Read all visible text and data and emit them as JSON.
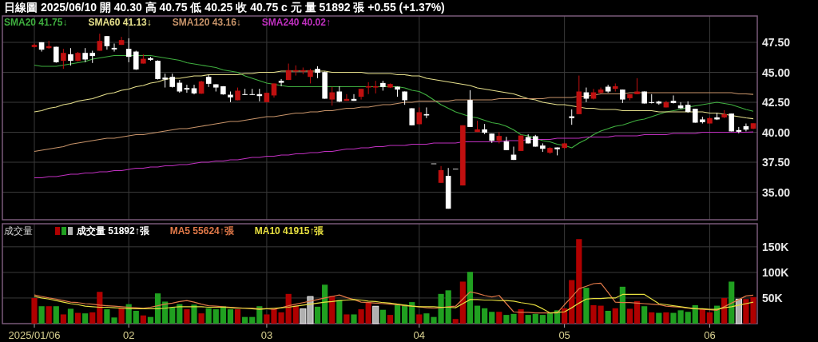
{
  "chart_data": [
    {
      "type": "candlestick",
      "title": "日線圖 2025/06/10 開 40.30 高 40.75 低 40.25 收 40.75 c 元 量 51892 張 +0.55 (+1.37%)",
      "legend": "top left",
      "grid": true,
      "tick_labels": "y",
      "categories": [
        "2025/01/06",
        null,
        null,
        null,
        null,
        null,
        null,
        null,
        null,
        null,
        null,
        null,
        null,
        "02",
        null,
        null,
        null,
        null,
        null,
        null,
        null,
        null,
        null,
        null,
        null,
        null,
        null,
        null,
        null,
        null,
        null,
        null,
        "03",
        null,
        null,
        null,
        null,
        null,
        null,
        null,
        null,
        null,
        null,
        null,
        null,
        null,
        null,
        null,
        null,
        null,
        null,
        null,
        null,
        "04",
        null,
        null,
        null,
        null,
        null,
        null,
        null,
        null,
        null,
        null,
        null,
        null,
        null,
        null,
        null,
        null,
        null,
        null,
        null,
        "05",
        null,
        null,
        null,
        null,
        null,
        null,
        null,
        null,
        null,
        null,
        null,
        null,
        null,
        null,
        null,
        null,
        null,
        null,
        null,
        "06",
        null,
        null,
        null,
        null,
        null,
        null
      ],
      "ylim": [
        32.7,
        49.7
      ],
      "yticks": [
        {
          "value": 35,
          "label": "35.00"
        },
        {
          "value": 37.5,
          "label": "37.50"
        },
        {
          "value": 40,
          "label": "40.00"
        },
        {
          "value": 42.5,
          "label": "42.50"
        },
        {
          "value": 45,
          "label": "45.00"
        },
        {
          "value": 47.5,
          "label": "47.50"
        }
      ],
      "ohlc": [
        [
          47.11,
          47.4,
          47.07,
          47.29
        ],
        [
          47.51,
          47.51,
          46.73,
          46.89
        ],
        [
          47.02,
          47.62,
          46.96,
          47.18
        ],
        [
          47.13,
          47.13,
          45.8,
          45.84
        ],
        [
          45.96,
          46.96,
          45.29,
          46.62
        ],
        [
          46.51,
          47.02,
          45.56,
          45.96
        ],
        [
          45.96,
          46.7,
          45.9,
          46.62
        ],
        [
          46.62,
          47.02,
          45.84,
          46.07
        ],
        [
          46.62,
          46.8,
          45.78,
          46.36
        ],
        [
          46.8,
          48.22,
          46.8,
          47.62
        ],
        [
          48.02,
          48.02,
          46.89,
          47.18
        ],
        [
          47.04,
          47.4,
          46.73,
          46.91
        ],
        [
          47.29,
          47.96,
          47.29,
          47.69
        ],
        [
          46.96,
          47.84,
          45.84,
          46.29
        ],
        [
          46.73,
          46.8,
          45.2,
          45.24
        ],
        [
          45.73,
          46.51,
          45.73,
          46.13
        ],
        [
          46.18,
          46.29,
          45.96,
          46.04
        ],
        [
          45.96,
          46.0,
          44.4,
          44.44
        ],
        [
          44.56,
          44.89,
          43.73,
          44.4
        ],
        [
          44.62,
          44.89,
          43.73,
          43.78
        ],
        [
          44.13,
          44.36,
          43.29,
          43.4
        ],
        [
          43.69,
          43.96,
          43.29,
          43.56
        ],
        [
          43.67,
          43.96,
          43.16,
          43.24
        ],
        [
          43.22,
          44.3,
          43.2,
          44.24
        ],
        [
          44.62,
          44.8,
          43.78,
          44.04
        ],
        [
          44.0,
          44.0,
          43.4,
          43.73
        ],
        [
          43.84,
          43.84,
          43.13,
          43.16
        ],
        [
          43.13,
          43.4,
          42.51,
          42.91
        ],
        [
          42.67,
          43.73,
          42.67,
          43.47
        ],
        [
          43.18,
          43.62,
          43.11,
          43.11
        ],
        [
          43.18,
          43.62,
          43.11,
          43.11
        ],
        [
          43.18,
          43.62,
          42.58,
          43.02
        ],
        [
          42.51,
          43.29,
          42.51,
          43.29
        ],
        [
          43.07,
          44.07,
          42.89,
          44.07
        ],
        [
          44.29,
          44.44,
          43.84,
          44.13
        ],
        [
          44.36,
          45.73,
          44.36,
          45.18
        ],
        [
          45.07,
          45.58,
          44.73,
          45.18
        ],
        [
          45.07,
          45.4,
          44.84,
          45.18
        ],
        [
          44.62,
          45.29,
          44.07,
          45.18
        ],
        [
          45.29,
          45.51,
          44.51,
          44.96
        ],
        [
          45.02,
          45.07,
          42.8,
          42.8
        ],
        [
          42.73,
          43.78,
          42.22,
          43.33
        ],
        [
          43.4,
          43.84,
          42.51,
          42.56
        ],
        [
          42.62,
          43.18,
          42.62,
          42.78
        ],
        [
          42.78,
          43.18,
          42.62,
          42.62
        ],
        [
          42.96,
          43.62,
          42.73,
          43.62
        ],
        [
          43.73,
          44.18,
          43.18,
          43.84
        ],
        [
          43.73,
          44.29,
          43.24,
          43.84
        ],
        [
          44.11,
          44.29,
          43.47,
          43.78
        ],
        [
          43.73,
          44.07,
          43.69,
          44.02
        ],
        [
          43.8,
          43.8,
          42.96,
          43.56
        ],
        [
          43.4,
          43.4,
          42.29,
          42.67
        ],
        [
          42.0,
          42.0,
          40.58,
          40.58
        ],
        [
          40.67,
          42.07,
          40.67,
          41.67
        ],
        [
          41.51,
          42.07,
          41.18,
          41.4
        ],
        [
          37.4,
          37.4,
          37.4,
          37.4
        ],
        [
          35.78,
          37.18,
          35.78,
          36.84
        ],
        [
          36.36,
          37.02,
          33.62,
          33.62
        ],
        [
          36.96,
          36.96,
          36.96,
          36.96
        ],
        [
          35.56,
          40.58,
          35.56,
          40.58
        ],
        [
          42.69,
          43.51,
          40.44,
          40.44
        ],
        [
          40.02,
          40.96,
          40.02,
          40.24
        ],
        [
          40.24,
          40.69,
          39.84,
          39.96
        ],
        [
          39.89,
          39.89,
          39.11,
          39.29
        ],
        [
          39.29,
          40.0,
          39.07,
          39.69
        ],
        [
          39.24,
          39.62,
          38.51,
          38.51
        ],
        [
          38.13,
          38.8,
          37.69,
          37.69
        ],
        [
          38.44,
          39.73,
          38.44,
          39.73
        ],
        [
          39.6,
          39.84,
          39.07,
          39.07
        ],
        [
          39.67,
          39.78,
          38.8,
          38.8
        ],
        [
          38.89,
          39.07,
          38.36,
          38.62
        ],
        [
          38.29,
          38.75,
          38.2,
          38.69
        ],
        [
          38.73,
          38.73,
          38.07,
          38.58
        ],
        [
          38.69,
          39.11,
          38.62,
          39.07
        ],
        [
          41.33,
          41.91,
          40.62,
          41.18
        ],
        [
          41.51,
          44.73,
          41.51,
          43.4
        ],
        [
          43.33,
          43.73,
          42.51,
          42.8
        ],
        [
          42.8,
          43.62,
          42.73,
          43.33
        ],
        [
          43.29,
          43.73,
          43.24,
          43.56
        ],
        [
          43.8,
          43.96,
          43.29,
          43.4
        ],
        [
          43.62,
          44.07,
          43.4,
          43.84
        ],
        [
          43.56,
          43.56,
          42.44,
          42.73
        ],
        [
          42.84,
          43.18,
          42.67,
          43.18
        ],
        [
          43.18,
          44.51,
          43.18,
          43.4
        ],
        [
          43.4,
          43.4,
          42.4,
          42.4
        ],
        [
          42.51,
          43.18,
          42.4,
          42.44
        ],
        [
          42.56,
          42.62,
          42.29,
          42.4
        ],
        [
          42.07,
          42.62,
          42.07,
          42.51
        ],
        [
          42.62,
          43.07,
          42.4,
          42.44
        ],
        [
          42.24,
          42.51,
          41.96,
          42.0
        ],
        [
          42.29,
          42.58,
          41.62,
          41.69
        ],
        [
          41.96,
          41.96,
          40.8,
          40.8
        ],
        [
          41.07,
          41.29,
          40.73,
          40.84
        ],
        [
          40.73,
          41.29,
          40.73,
          41.18
        ],
        [
          41.24,
          41.62,
          41.02,
          41.07
        ],
        [
          41.24,
          41.84,
          41.18,
          41.51
        ],
        [
          41.56,
          41.56,
          40.07,
          40.07
        ],
        [
          40.18,
          40.44,
          39.91,
          40.04
        ],
        [
          40.51,
          40.73,
          40.07,
          40.22
        ],
        [
          40.3,
          40.75,
          40.25,
          40.75
        ]
      ],
      "series": [
        {
          "name": "SMA20 41.75↓",
          "type": "line",
          "color": "#3fae3f",
          "values": [
            45.6,
            45.5,
            45.5,
            45.5,
            45.6,
            45.7,
            45.8,
            45.9,
            46.1,
            46.2,
            46.3,
            46.4,
            46.4,
            46.4,
            46.4,
            46.4,
            46.4,
            46.3,
            46.2,
            46.1,
            46.0,
            45.8,
            45.7,
            45.6,
            45.5,
            45.4,
            45.2,
            45.1,
            45.0,
            44.7,
            44.5,
            44.3,
            44.1,
            44.0,
            43.9,
            43.8,
            43.8,
            43.8,
            43.8,
            43.8,
            43.8,
            43.8,
            43.8,
            43.8,
            43.8,
            43.8,
            43.8,
            43.8,
            43.8,
            43.8,
            43.8,
            43.7,
            43.5,
            43.4,
            43.1,
            42.7,
            42.3,
            42.0,
            41.7,
            41.5,
            41.3,
            41.2,
            41.0,
            40.8,
            40.7,
            40.5,
            40.2,
            39.8,
            39.7,
            39.5,
            39.3,
            39.2,
            39.0,
            38.9,
            38.7,
            39.1,
            39.4,
            39.8,
            40.1,
            40.3,
            40.5,
            40.6,
            40.8,
            41.0,
            41.1,
            41.3,
            41.5,
            41.7,
            41.8,
            41.9,
            42.1,
            42.2,
            42.3,
            42.4,
            42.5,
            42.4,
            42.3,
            42.1,
            41.9,
            41.75
          ]
        },
        {
          "name": "SMA60 41.13↓",
          "type": "line",
          "color": "#e6e08c",
          "values": [
            41.7,
            41.8,
            42.0,
            42.1,
            42.3,
            42.4,
            42.6,
            42.7,
            42.8,
            43.0,
            43.2,
            43.3,
            43.5,
            43.6,
            43.8,
            43.9,
            44.1,
            44.2,
            44.4,
            44.5,
            44.5,
            44.6,
            44.7,
            44.7,
            44.8,
            44.8,
            44.8,
            44.8,
            44.8,
            44.9,
            44.9,
            45.0,
            45.0,
            45.0,
            45.1,
            45.1,
            45.1,
            45.1,
            45.1,
            45.1,
            45.1,
            45.0,
            45.0,
            45.0,
            45.0,
            45.0,
            44.9,
            44.9,
            44.9,
            44.9,
            44.8,
            44.8,
            44.7,
            44.7,
            44.5,
            44.4,
            44.3,
            44.2,
            44.1,
            44.0,
            43.9,
            43.7,
            43.6,
            43.5,
            43.4,
            43.3,
            43.2,
            43.0,
            42.8,
            42.7,
            42.5,
            42.4,
            42.3,
            42.3,
            42.2,
            42.1,
            42.0,
            42.0,
            41.9,
            41.9,
            41.9,
            41.8,
            41.8,
            41.8,
            41.8,
            41.8,
            41.7,
            41.7,
            41.7,
            41.7,
            41.7,
            41.7,
            41.7,
            41.6,
            41.6,
            41.5,
            41.4,
            41.3,
            41.2,
            41.13
          ]
        },
        {
          "name": "SMA120 43.16↓",
          "type": "line",
          "color": "#c8946a",
          "values": [
            38.4,
            38.5,
            38.6,
            38.7,
            38.8,
            39.0,
            39.1,
            39.2,
            39.3,
            39.4,
            39.5,
            39.5,
            39.6,
            39.7,
            39.8,
            39.8,
            39.9,
            40.0,
            40.1,
            40.2,
            40.3,
            40.3,
            40.4,
            40.5,
            40.6,
            40.7,
            40.8,
            40.9,
            40.9,
            41.0,
            41.1,
            41.2,
            41.3,
            41.3,
            41.4,
            41.5,
            41.6,
            41.6,
            41.7,
            41.7,
            41.8,
            41.8,
            41.9,
            42.0,
            42.0,
            42.1,
            42.1,
            42.2,
            42.3,
            42.3,
            42.4,
            42.5,
            42.5,
            42.6,
            42.6,
            42.6,
            42.6,
            42.6,
            42.7,
            42.7,
            42.7,
            42.7,
            42.7,
            42.7,
            42.8,
            42.8,
            42.8,
            42.8,
            42.8,
            42.8,
            42.8,
            42.9,
            42.9,
            42.9,
            42.9,
            43.0,
            43.0,
            43.1,
            43.2,
            43.2,
            43.2,
            43.2,
            43.3,
            43.3,
            43.3,
            43.3,
            43.3,
            43.3,
            43.3,
            43.3,
            43.3,
            43.3,
            43.3,
            43.3,
            43.3,
            43.3,
            43.3,
            43.2,
            43.2,
            43.16
          ]
        },
        {
          "name": "SMA240 40.02↑",
          "type": "line",
          "color": "#c030c0",
          "values": [
            36.2,
            36.2,
            36.3,
            36.3,
            36.4,
            36.5,
            36.5,
            36.6,
            36.6,
            36.7,
            36.7,
            36.8,
            36.8,
            36.9,
            37.0,
            37.0,
            37.1,
            37.1,
            37.2,
            37.2,
            37.3,
            37.3,
            37.4,
            37.5,
            37.5,
            37.6,
            37.6,
            37.7,
            37.7,
            37.8,
            37.9,
            37.9,
            38.0,
            38.0,
            38.1,
            38.1,
            38.2,
            38.2,
            38.3,
            38.3,
            38.4,
            38.4,
            38.5,
            38.6,
            38.6,
            38.7,
            38.7,
            38.8,
            38.8,
            38.9,
            38.9,
            38.9,
            39.0,
            39.0,
            39.0,
            39.1,
            39.1,
            39.1,
            39.1,
            39.2,
            39.2,
            39.2,
            39.2,
            39.2,
            39.2,
            39.3,
            39.3,
            39.3,
            39.4,
            39.4,
            39.4,
            39.4,
            39.5,
            39.5,
            39.5,
            39.5,
            39.6,
            39.6,
            39.6,
            39.6,
            39.7,
            39.7,
            39.7,
            39.7,
            39.8,
            39.8,
            39.8,
            39.8,
            39.9,
            39.9,
            39.9,
            39.9,
            40.0,
            40.0,
            40.0,
            40.0,
            40.0,
            40.0,
            40.0,
            40.02
          ]
        }
      ]
    },
    {
      "type": "bar",
      "title": "成交量",
      "legend": "top left",
      "grid": true,
      "categories": [
        "2025/01/06",
        null,
        null,
        null,
        null,
        null,
        null,
        null,
        null,
        null,
        null,
        null,
        null,
        "02",
        null,
        null,
        null,
        null,
        null,
        null,
        null,
        null,
        null,
        null,
        null,
        null,
        null,
        null,
        null,
        null,
        null,
        null,
        "03",
        null,
        null,
        null,
        null,
        null,
        null,
        null,
        null,
        null,
        null,
        null,
        null,
        null,
        null,
        null,
        null,
        null,
        null,
        null,
        null,
        "04",
        null,
        null,
        null,
        null,
        null,
        null,
        null,
        null,
        null,
        null,
        null,
        null,
        null,
        null,
        null,
        null,
        null,
        null,
        null,
        "05",
        null,
        null,
        null,
        null,
        null,
        null,
        null,
        null,
        null,
        null,
        null,
        null,
        null,
        null,
        null,
        null,
        null,
        null,
        null,
        "06",
        null,
        null,
        null,
        null,
        null,
        null
      ],
      "ylim": [
        0,
        195
      ],
      "yticks": [
        {
          "value": 50,
          "label": "50K"
        },
        {
          "value": 100,
          "label": "100K"
        },
        {
          "value": 150,
          "label": "150K"
        }
      ],
      "series": [
        {
          "name": "成交量 51892↑張",
          "type": "bar",
          "color": "#ffffff",
          "colors": [
            "#b00000",
            "#20a020",
            "#b00000",
            "#20a020",
            "#b00000",
            "#20a020",
            "#b00000",
            "#20a020",
            "#b00000",
            "#b00000",
            "#20a020",
            "#20a020",
            "#b00000",
            "#20a020",
            "#20a020",
            "#b00000",
            "#20a020",
            "#20a020",
            "#20a020",
            "#20a020",
            "#20a020",
            "#b00000",
            "#20a020",
            "#b00000",
            "#20a020",
            "#20a020",
            "#20a020",
            "#20a020",
            "#b00000",
            "#20a020",
            "#20a020",
            "#20a020",
            "#b00000",
            "#b00000",
            "#b00000",
            "#b00000",
            "#b00000",
            "#b0b0b0",
            "#b0b0b0",
            "#20a020",
            "#20a020",
            "#b00000",
            "#20a020",
            "#b00000",
            "#20a020",
            "#b00000",
            "#b00000",
            "#b0b0b0",
            "#20a020",
            "#b00000",
            "#20a020",
            "#20a020",
            "#20a020",
            "#b00000",
            "#20a020",
            "#20a020",
            "#20a020",
            "#20a020",
            "#b00000",
            "#b00000",
            "#20a020",
            "#20a020",
            "#20a020",
            "#20a020",
            "#b00000",
            "#20a020",
            "#20a020",
            "#b00000",
            "#20a020",
            "#20a020",
            "#20a020",
            "#20a020",
            "#20a020",
            "#b00000",
            "#b00000",
            "#b00000",
            "#20a020",
            "#b00000",
            "#b00000",
            "#20a020",
            "#b00000",
            "#20a020",
            "#b00000",
            "#b00000",
            "#20a020",
            "#b00000",
            "#20a020",
            "#b00000",
            "#20a020",
            "#20a020",
            "#20a020",
            "#20a020",
            "#b00000",
            "#b00000",
            "#20a020",
            "#b00000",
            "#20a020",
            "#b0b0b0",
            "#b00000",
            "#b00000"
          ],
          "values": [
            50,
            34,
            34,
            34,
            18,
            29,
            21,
            20,
            22,
            62,
            28,
            12,
            30,
            38,
            25,
            16,
            13,
            59,
            43,
            32,
            38,
            28,
            37,
            20,
            30,
            28,
            34,
            28,
            28,
            13,
            13,
            34,
            18,
            29,
            22,
            58,
            35,
            29,
            53,
            33,
            76,
            54,
            46,
            18,
            18,
            28,
            42,
            34,
            27,
            17,
            38,
            37,
            42,
            18,
            20,
            13,
            58,
            65,
            9,
            82,
            101,
            35,
            30,
            23,
            23,
            17,
            19,
            28,
            17,
            19,
            17,
            21,
            26,
            30,
            85,
            165,
            70,
            36,
            35,
            25,
            30,
            72,
            29,
            44,
            34,
            22,
            21,
            22,
            21,
            26,
            23,
            36,
            29,
            22,
            35,
            50,
            82,
            48,
            48,
            51.892
          ]
        },
        {
          "name": "MA5 55624↑張",
          "type": "line",
          "color": "#e07848",
          "values": [
            56,
            53,
            50,
            48,
            45,
            42,
            41,
            39,
            38,
            36,
            35,
            34,
            33,
            32,
            31,
            30,
            32,
            35,
            38,
            40,
            43,
            45,
            42,
            38,
            35,
            34,
            33,
            32,
            31,
            30,
            30,
            29,
            29,
            28,
            31,
            35,
            38,
            41,
            44,
            47,
            50,
            53,
            56,
            51,
            47,
            42,
            41,
            40,
            39,
            38,
            37,
            35,
            34,
            33,
            31,
            30,
            31,
            33,
            34,
            48,
            62,
            59,
            55,
            52,
            55,
            39,
            23,
            22,
            22,
            21,
            21,
            21,
            21,
            37,
            52,
            68,
            73,
            78,
            79,
            61,
            42,
            41,
            41,
            40,
            39,
            38,
            37,
            34,
            33,
            32,
            30,
            29,
            28,
            27,
            26,
            33,
            40,
            47,
            54,
            55.624
          ]
        },
        {
          "name": "MA10 41915↑張",
          "type": "line",
          "color": "#e8e040",
          "values": [
            53,
            50,
            48,
            45,
            42,
            39,
            37,
            34,
            33,
            32,
            32,
            31,
            30,
            29,
            29,
            29,
            29,
            29,
            30,
            32,
            33,
            33,
            33,
            33,
            32,
            32,
            32,
            31,
            30,
            30,
            29,
            28,
            29,
            30,
            31,
            32,
            34,
            36,
            38,
            40,
            42,
            43,
            45,
            46,
            47,
            46,
            44,
            43,
            41,
            40,
            38,
            36,
            34,
            33,
            33,
            33,
            32,
            32,
            31,
            39,
            47,
            47,
            46,
            46,
            45,
            45,
            44,
            41,
            39,
            36,
            29,
            21,
            22,
            23,
            31,
            40,
            48,
            49,
            49,
            50,
            50,
            57,
            57,
            57,
            57,
            48,
            39,
            37,
            35,
            33,
            31,
            29,
            29,
            28,
            28,
            31,
            33,
            36,
            39,
            41.915
          ]
        }
      ]
    }
  ]
}
